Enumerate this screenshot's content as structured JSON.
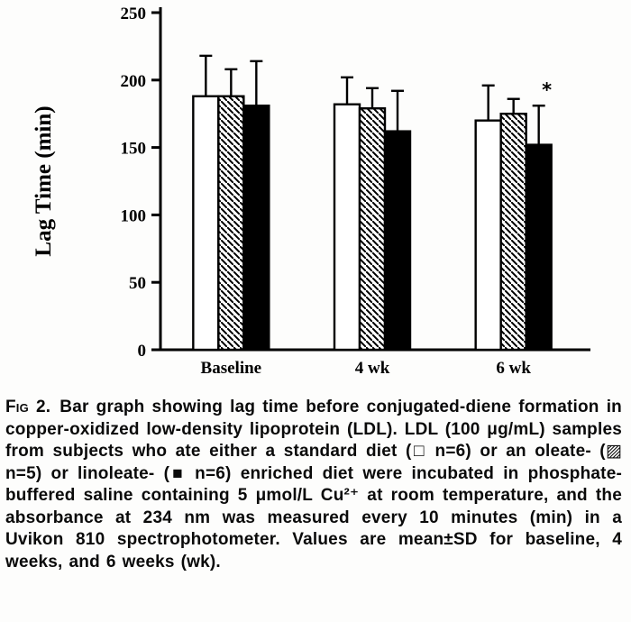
{
  "figure": {
    "caption_label": "Fig 2.",
    "caption_text": "Bar graph showing lag time before conjugated-diene formation in copper-oxidized low-density lipoprotein (LDL). LDL (100 μg/mL) samples from subjects who ate either a standard diet (□ n=6) or an oleate- (▨ n=5) or linoleate- (■ n=6) enriched diet were incubated in phosphate-buffered saline containing 5 μmol/L Cu²⁺ at room temperature, and the absorbance at 234 nm was measured every 10 minutes (min) in a Uvikon 810 spectrophotometer. Values are mean±SD for baseline, 4 weeks, and 6 weeks (wk)."
  },
  "chart_data": {
    "type": "bar",
    "title": "",
    "xlabel": "",
    "ylabel": "Lag Time (min)",
    "ylim": [
      0,
      250
    ],
    "yticks": [
      0,
      50,
      100,
      150,
      200,
      250
    ],
    "categories": [
      "Baseline",
      "4 wk",
      "6 wk"
    ],
    "series": [
      {
        "name": "standard diet (n=6)",
        "fill": "white",
        "values": [
          188,
          182,
          170
        ],
        "sd": [
          30,
          20,
          26
        ]
      },
      {
        "name": "oleate-enriched diet (n=5)",
        "fill": "hatch",
        "values": [
          188,
          179,
          175
        ],
        "sd": [
          20,
          15,
          11
        ]
      },
      {
        "name": "linoleate-enriched diet (n=6)",
        "fill": "black",
        "values": [
          181,
          162,
          152
        ],
        "sd": [
          33,
          30,
          29
        ]
      }
    ],
    "error_bars": "mean+SD, upward caps",
    "annotations": [
      {
        "category_index": 2,
        "series_index": 2,
        "text": "*"
      }
    ],
    "legend": "in caption",
    "grid": false
  }
}
